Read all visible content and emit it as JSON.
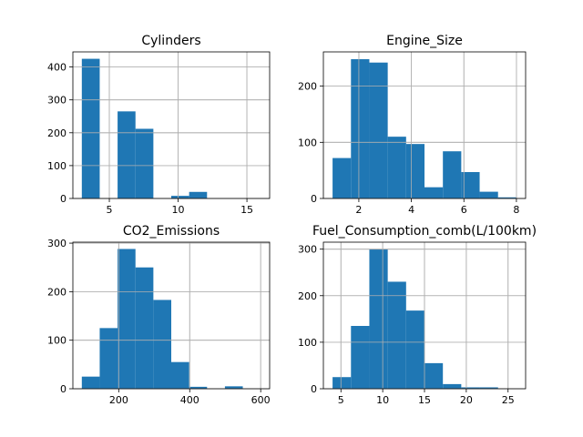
{
  "chart_data": [
    {
      "type": "bar",
      "title": "Cylinders",
      "bin_edges": [
        3.0,
        4.3,
        5.6,
        6.9,
        8.2,
        9.5,
        10.8,
        12.1,
        13.4,
        14.7,
        16.0
      ],
      "values": [
        425,
        0,
        265,
        212,
        0,
        8,
        20,
        0,
        0,
        0
      ],
      "xlim": [
        2.35,
        16.65
      ],
      "ylim": [
        0,
        446
      ],
      "xticks": [
        5,
        10,
        15
      ],
      "yticks": [
        0,
        100,
        200,
        300,
        400
      ],
      "grid": true,
      "color": "#1f77b4"
    },
    {
      "type": "bar",
      "title": "Engine_Size",
      "bin_edges": [
        1.0,
        1.7,
        2.4,
        3.1,
        3.8,
        4.5,
        5.2,
        5.9,
        6.6,
        7.3,
        8.0
      ],
      "values": [
        72,
        248,
        242,
        110,
        97,
        20,
        84,
        47,
        12,
        2
      ],
      "xlim": [
        0.65,
        8.35
      ],
      "ylim": [
        0,
        261
      ],
      "xticks": [
        2,
        4,
        6,
        8
      ],
      "yticks": [
        0,
        100,
        200
      ],
      "grid": true,
      "color": "#1f77b4"
    },
    {
      "type": "bar",
      "title": "CO2_Emissions",
      "bin_edges": [
        96,
        146.4,
        196.8,
        247.2,
        297.6,
        348,
        398.4,
        448.8,
        499.2,
        549.6,
        600
      ],
      "values": [
        25,
        125,
        288,
        250,
        183,
        55,
        4,
        0,
        5,
        0
      ],
      "xlim": [
        70.8,
        625.2
      ],
      "ylim": [
        0,
        302
      ],
      "xticks": [
        200,
        400,
        600
      ],
      "yticks": [
        0,
        100,
        200,
        300
      ],
      "grid": true,
      "color": "#1f77b4"
    },
    {
      "type": "bar",
      "title": "Fuel_Consumption_comb(L/100km)",
      "bin_edges": [
        4.0,
        6.2,
        8.4,
        10.6,
        12.8,
        15.0,
        17.2,
        19.4,
        21.6,
        23.8,
        26.0
      ],
      "values": [
        25,
        135,
        300,
        230,
        168,
        55,
        10,
        3,
        3,
        0
      ],
      "xlim": [
        2.9,
        27.1
      ],
      "ylim": [
        0,
        315
      ],
      "xticks": [
        5,
        10,
        15,
        20,
        25
      ],
      "yticks": [
        0,
        100,
        200,
        300
      ],
      "grid": true,
      "color": "#1f77b4"
    }
  ]
}
